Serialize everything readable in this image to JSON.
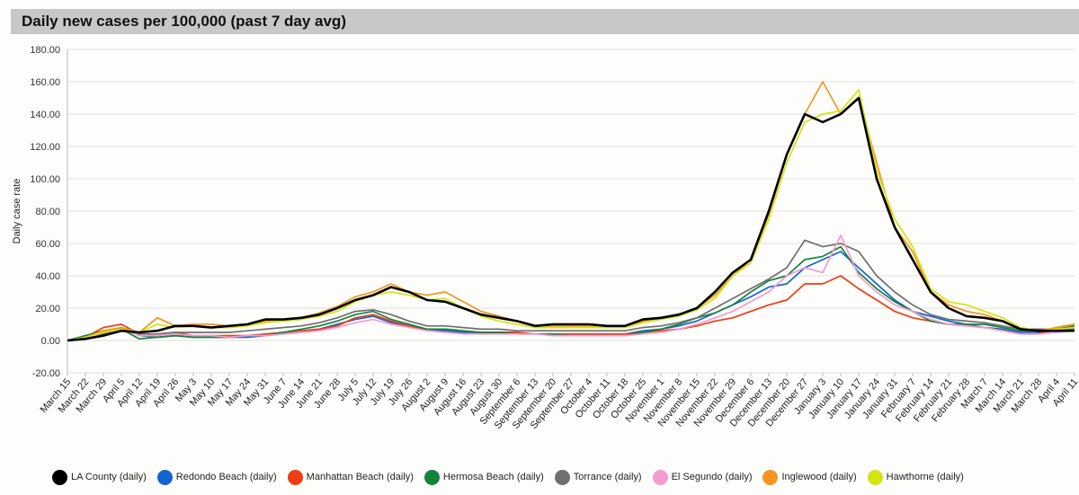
{
  "title": "Daily new cases per 100,000 (past 7 day avg)",
  "chart_data": {
    "type": "line",
    "title": "Daily new cases per 100,000 (past 7 day avg)",
    "xlabel": "",
    "ylabel": "Daily case rate",
    "ylim": [
      -20,
      180
    ],
    "yticks": [
      "-20.00",
      "0.00",
      "20.00",
      "40.00",
      "60.00",
      "80.00",
      "100.00",
      "120.00",
      "140.00",
      "160.00",
      "180.00"
    ],
    "grid": true,
    "legend_position": "bottom",
    "x": [
      "March 15",
      "March 22",
      "March 29",
      "April 5",
      "April 12",
      "April 19",
      "April 26",
      "May 3",
      "May 10",
      "May 17",
      "May 24",
      "May 31",
      "June 7",
      "June 14",
      "June 21",
      "June 28",
      "July 5",
      "July 12",
      "July 19",
      "July 26",
      "August 2",
      "August 9",
      "August 16",
      "August 23",
      "August 30",
      "September 6",
      "September 13",
      "September 20",
      "September 27",
      "October 4",
      "October 11",
      "October 18",
      "October 25",
      "November 1",
      "November 8",
      "November 15",
      "November 22",
      "November 29",
      "December 6",
      "December 13",
      "December 20",
      "December 27",
      "January 3",
      "January 10",
      "January 17",
      "January 24",
      "January 31",
      "February 7",
      "February 14",
      "February 21",
      "February 28",
      "March 7",
      "March 14",
      "March 21",
      "March 28",
      "April 4",
      "April 11"
    ],
    "series": [
      {
        "name": "LA County (daily)",
        "color": "#000000",
        "values": [
          0,
          1,
          3,
          6,
          5,
          6,
          9,
          9,
          8,
          9,
          10,
          13,
          13,
          14,
          16,
          20,
          25,
          28,
          33,
          30,
          25,
          24,
          20,
          16,
          14,
          12,
          9,
          10,
          10,
          10,
          9,
          9,
          13,
          14,
          16,
          20,
          30,
          42,
          50,
          80,
          115,
          140,
          135,
          140,
          150,
          100,
          70,
          50,
          30,
          20,
          15,
          14,
          12,
          7,
          6,
          6,
          6
        ]
      },
      {
        "name": "Redondo Beach (daily)",
        "color": "#1463d0",
        "values": [
          0,
          1,
          4,
          8,
          3,
          2,
          3,
          2,
          2,
          2,
          2,
          3,
          4,
          5,
          7,
          10,
          13,
          15,
          11,
          9,
          6,
          6,
          5,
          5,
          5,
          5,
          4,
          4,
          4,
          4,
          4,
          4,
          6,
          7,
          9,
          12,
          17,
          22,
          27,
          33,
          35,
          45,
          50,
          55,
          45,
          35,
          25,
          18,
          15,
          12,
          10,
          8,
          7,
          5,
          5,
          6,
          7
        ]
      },
      {
        "name": "Manhattan Beach (daily)",
        "color": "#f03c14",
        "values": [
          0,
          2,
          8,
          10,
          4,
          4,
          5,
          3,
          3,
          3,
          3,
          4,
          5,
          6,
          7,
          9,
          14,
          16,
          12,
          9,
          7,
          7,
          6,
          5,
          5,
          5,
          4,
          4,
          4,
          4,
          4,
          4,
          5,
          6,
          7,
          9,
          12,
          14,
          18,
          22,
          25,
          35,
          35,
          40,
          32,
          25,
          18,
          14,
          12,
          10,
          9,
          8,
          6,
          4,
          4,
          8,
          10
        ]
      },
      {
        "name": "Hermosa Beach (daily)",
        "color": "#12843c",
        "values": [
          0,
          3,
          6,
          7,
          1,
          2,
          3,
          2,
          2,
          2,
          3,
          3,
          5,
          7,
          9,
          12,
          16,
          18,
          13,
          10,
          7,
          7,
          6,
          5,
          5,
          4,
          4,
          4,
          3,
          3,
          3,
          3,
          5,
          7,
          10,
          14,
          17,
          22,
          30,
          37,
          40,
          50,
          52,
          58,
          42,
          32,
          24,
          18,
          12,
          10,
          10,
          10,
          8,
          6,
          6,
          7,
          9
        ]
      },
      {
        "name": "Torrance (daily)",
        "color": "#6f6f6f",
        "values": [
          0,
          1,
          4,
          6,
          4,
          4,
          5,
          5,
          5,
          5,
          6,
          7,
          8,
          9,
          11,
          14,
          18,
          19,
          16,
          12,
          9,
          9,
          8,
          7,
          7,
          6,
          6,
          6,
          6,
          6,
          6,
          6,
          8,
          9,
          11,
          14,
          20,
          26,
          32,
          38,
          45,
          62,
          58,
          60,
          55,
          40,
          30,
          22,
          16,
          13,
          12,
          11,
          9,
          7,
          7,
          7,
          7
        ]
      },
      {
        "name": "El Segundo (daily)",
        "color": "#f69bd0",
        "values": [
          0,
          1,
          5,
          7,
          3,
          3,
          4,
          3,
          3,
          2,
          3,
          3,
          4,
          5,
          6,
          8,
          11,
          13,
          10,
          8,
          6,
          5,
          4,
          4,
          4,
          4,
          4,
          3,
          3,
          3,
          3,
          3,
          4,
          5,
          7,
          10,
          14,
          18,
          24,
          30,
          40,
          45,
          42,
          65,
          40,
          30,
          22,
          18,
          13,
          10,
          9,
          8,
          6,
          4,
          4,
          5,
          6
        ]
      },
      {
        "name": "Inglewood (daily)",
        "color": "#f7941d",
        "values": [
          0,
          2,
          6,
          8,
          5,
          14,
          9,
          10,
          10,
          9,
          10,
          12,
          13,
          14,
          17,
          21,
          27,
          30,
          35,
          30,
          28,
          30,
          24,
          18,
          15,
          12,
          9,
          9,
          9,
          9,
          9,
          9,
          12,
          14,
          16,
          20,
          28,
          40,
          50,
          78,
          115,
          140,
          160,
          140,
          150,
          110,
          70,
          55,
          30,
          22,
          18,
          16,
          12,
          7,
          6,
          8,
          10
        ]
      },
      {
        "name": "Hawthorne (daily)",
        "color": "#d4e312",
        "values": [
          0,
          2,
          5,
          7,
          5,
          10,
          8,
          9,
          8,
          8,
          9,
          11,
          12,
          13,
          15,
          18,
          24,
          28,
          30,
          28,
          25,
          26,
          20,
          15,
          12,
          10,
          8,
          8,
          8,
          8,
          8,
          8,
          11,
          13,
          15,
          19,
          26,
          40,
          48,
          75,
          110,
          135,
          140,
          142,
          155,
          105,
          75,
          58,
          32,
          24,
          22,
          18,
          14,
          8,
          6,
          7,
          8
        ]
      }
    ]
  }
}
